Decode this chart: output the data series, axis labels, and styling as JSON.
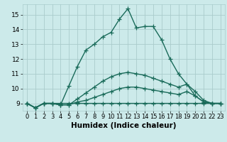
{
  "title": "",
  "xlabel": "Humidex (Indice chaleur)",
  "ylabel": "",
  "bg_color": "#cceaea",
  "grid_color": "#aacccc",
  "line_color": "#1a6b5a",
  "xlim": [
    -0.5,
    23.5
  ],
  "ylim": [
    8.5,
    15.7
  ],
  "xticks": [
    0,
    1,
    2,
    3,
    4,
    5,
    6,
    7,
    8,
    9,
    10,
    11,
    12,
    13,
    14,
    15,
    16,
    17,
    18,
    19,
    20,
    21,
    22,
    23
  ],
  "yticks": [
    9,
    10,
    11,
    12,
    13,
    14,
    15
  ],
  "series": [
    [
      9.0,
      8.7,
      9.0,
      9.0,
      9.0,
      9.0,
      9.0,
      9.0,
      9.0,
      9.0,
      9.0,
      9.0,
      9.0,
      9.0,
      9.0,
      9.0,
      9.0,
      9.0,
      9.0,
      9.0,
      9.0,
      9.0,
      9.0,
      9.0
    ],
    [
      9.0,
      8.7,
      9.0,
      9.0,
      8.9,
      8.9,
      9.1,
      9.2,
      9.4,
      9.6,
      9.8,
      10.0,
      10.1,
      10.1,
      10.0,
      9.9,
      9.8,
      9.7,
      9.6,
      9.8,
      9.5,
      9.1,
      9.0,
      9.0
    ],
    [
      9.0,
      8.7,
      9.0,
      9.0,
      8.9,
      8.9,
      9.3,
      9.7,
      10.1,
      10.5,
      10.8,
      11.0,
      11.1,
      11.0,
      10.9,
      10.7,
      10.5,
      10.3,
      10.1,
      10.3,
      9.8,
      9.2,
      9.0,
      9.0
    ],
    [
      9.0,
      8.7,
      9.0,
      9.0,
      8.9,
      10.2,
      11.5,
      12.6,
      13.0,
      13.5,
      13.8,
      14.7,
      15.4,
      14.1,
      14.2,
      14.2,
      13.3,
      12.0,
      11.0,
      10.3,
      9.5,
      9.1,
      9.0,
      9.0
    ]
  ],
  "marker": "+",
  "markersize": 4,
  "linewidth": 1.0,
  "tick_fontsize": 6.5,
  "xlabel_fontsize": 7.5
}
